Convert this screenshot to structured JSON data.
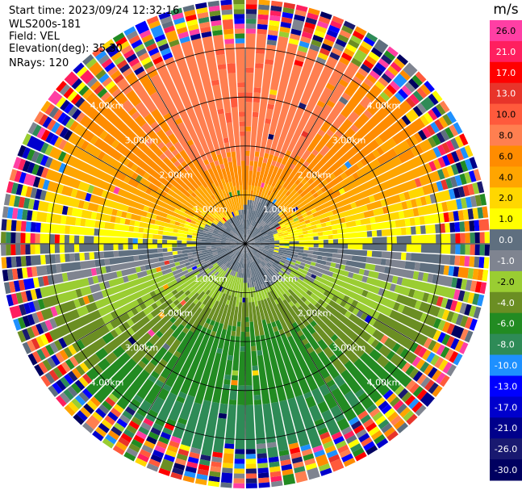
{
  "header": {
    "start_time": "Start time: 2023/09/24 12:32:16",
    "instrument": "WLS200s-181",
    "field": "Field: VEL",
    "elevation": "Elevation(deg): 35.30",
    "nrays": "NRays: 120"
  },
  "chart_data": {
    "type": "heatmap",
    "projection": "polar PPI",
    "field": "VEL",
    "units": "m/s",
    "elevation_deg": 35.3,
    "n_rays": 120,
    "range_rings_km": [
      1.0,
      2.0,
      3.0,
      4.0
    ],
    "ring_label_text": [
      "1.00km",
      "2.00km",
      "3.00km",
      "4.00km"
    ],
    "max_range_km": 5.0,
    "grid": true,
    "colorbar": {
      "title": "m/s",
      "ticks": [
        "26.0",
        "21.0",
        "17.0",
        "13.0",
        "10.0",
        "8.0",
        "6.0",
        "4.0",
        "2.0",
        "1.0",
        "0.0",
        "-1.0",
        "-2.0",
        "-4.0",
        "-6.0",
        "-8.0",
        "-10.0",
        "-13.0",
        "-17.0",
        "-21.0",
        "-26.0",
        "-30.0"
      ],
      "colors": [
        "#ff3fa4",
        "#ff1f5f",
        "#ff0000",
        "#e8342a",
        "#ff5a3c",
        "#ff7f50",
        "#ff8c00",
        "#ffa500",
        "#ffd700",
        "#ffff00",
        "#5f6f7f",
        "#7f8490",
        "#9acd32",
        "#6b8e23",
        "#228b22",
        "#2e8b57",
        "#1e90ff",
        "#0000ff",
        "#0000cd",
        "#00008b",
        "#191970",
        "#000060"
      ]
    },
    "velocity_pattern": {
      "outer_noise_start_km": 4.3,
      "near_zero_band_km": [
        0.0,
        0.9
      ],
      "approaching_sector": "south (negative, green)",
      "receding_sector": "north (positive, yellow-orange)"
    }
  }
}
